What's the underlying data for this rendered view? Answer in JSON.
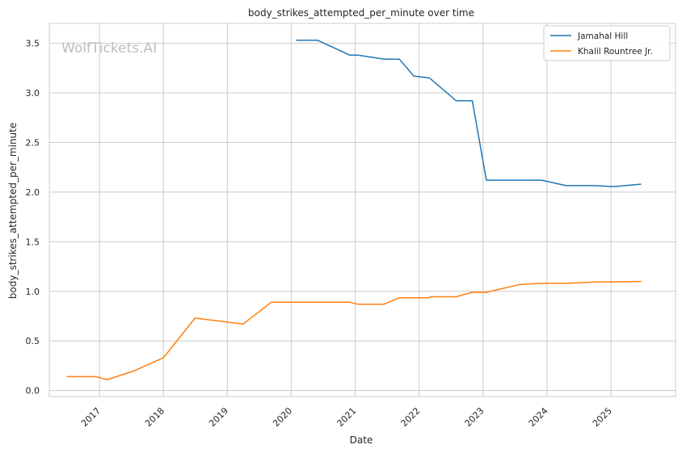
{
  "chart_data": {
    "type": "line",
    "title": "body_strikes_attempted_per_minute over time",
    "xlabel": "Date",
    "ylabel": "body_strikes_attempted_per_minute",
    "watermark": "WolfTickets.AI",
    "xlim": [
      "2016-03-20",
      "2026-01-05"
    ],
    "ylim": [
      -0.06,
      3.7
    ],
    "x_ticks": [
      "2017-01-01",
      "2018-01-01",
      "2019-01-01",
      "2020-01-01",
      "2021-01-01",
      "2022-01-01",
      "2023-01-01",
      "2024-01-01",
      "2025-01-01"
    ],
    "x_tick_labels": [
      "2017",
      "2018",
      "2019",
      "2020",
      "2021",
      "2022",
      "2023",
      "2024",
      "2025"
    ],
    "y_ticks": [
      0.0,
      0.5,
      1.0,
      1.5,
      2.0,
      2.5,
      3.0,
      3.5
    ],
    "y_tick_labels": [
      "0.0",
      "0.5",
      "1.0",
      "1.5",
      "2.0",
      "2.5",
      "3.0",
      "3.5"
    ],
    "grid": true,
    "legend_position": "top-right",
    "series": [
      {
        "name": "Jamahal Hill",
        "color": "#1f77b4",
        "points": [
          [
            "2020-02-01",
            3.53
          ],
          [
            "2020-06-01",
            3.53
          ],
          [
            "2020-12-01",
            3.38
          ],
          [
            "2021-01-15",
            3.38
          ],
          [
            "2021-06-15",
            3.34
          ],
          [
            "2021-09-10",
            3.34
          ],
          [
            "2021-12-01",
            3.17
          ],
          [
            "2022-03-01",
            3.15
          ],
          [
            "2022-08-01",
            2.92
          ],
          [
            "2022-11-01",
            2.92
          ],
          [
            "2023-01-20",
            2.12
          ],
          [
            "2023-12-01",
            2.12
          ],
          [
            "2024-04-20",
            2.065
          ],
          [
            "2024-10-10",
            2.065
          ],
          [
            "2025-01-15",
            2.055
          ],
          [
            "2025-06-20",
            2.08
          ]
        ]
      },
      {
        "name": "Khalil Rountree Jr.",
        "color": "#ff7f0e",
        "points": [
          [
            "2016-07-01",
            0.14
          ],
          [
            "2016-12-10",
            0.14
          ],
          [
            "2017-02-15",
            0.11
          ],
          [
            "2017-07-20",
            0.2
          ],
          [
            "2018-01-01",
            0.33
          ],
          [
            "2018-07-01",
            0.73
          ],
          [
            "2019-04-01",
            0.67
          ],
          [
            "2019-09-10",
            0.89
          ],
          [
            "2020-12-01",
            0.89
          ],
          [
            "2021-01-15",
            0.87
          ],
          [
            "2021-06-15",
            0.87
          ],
          [
            "2021-09-10",
            0.935
          ],
          [
            "2022-02-20",
            0.935
          ],
          [
            "2022-03-10",
            0.945
          ],
          [
            "2022-08-01",
            0.945
          ],
          [
            "2022-10-30",
            0.99
          ],
          [
            "2023-01-20",
            0.99
          ],
          [
            "2023-08-01",
            1.07
          ],
          [
            "2023-12-01",
            1.08
          ],
          [
            "2024-04-20",
            1.08
          ],
          [
            "2024-10-10",
            1.095
          ],
          [
            "2025-01-15",
            1.095
          ],
          [
            "2025-06-20",
            1.1
          ]
        ]
      }
    ]
  }
}
